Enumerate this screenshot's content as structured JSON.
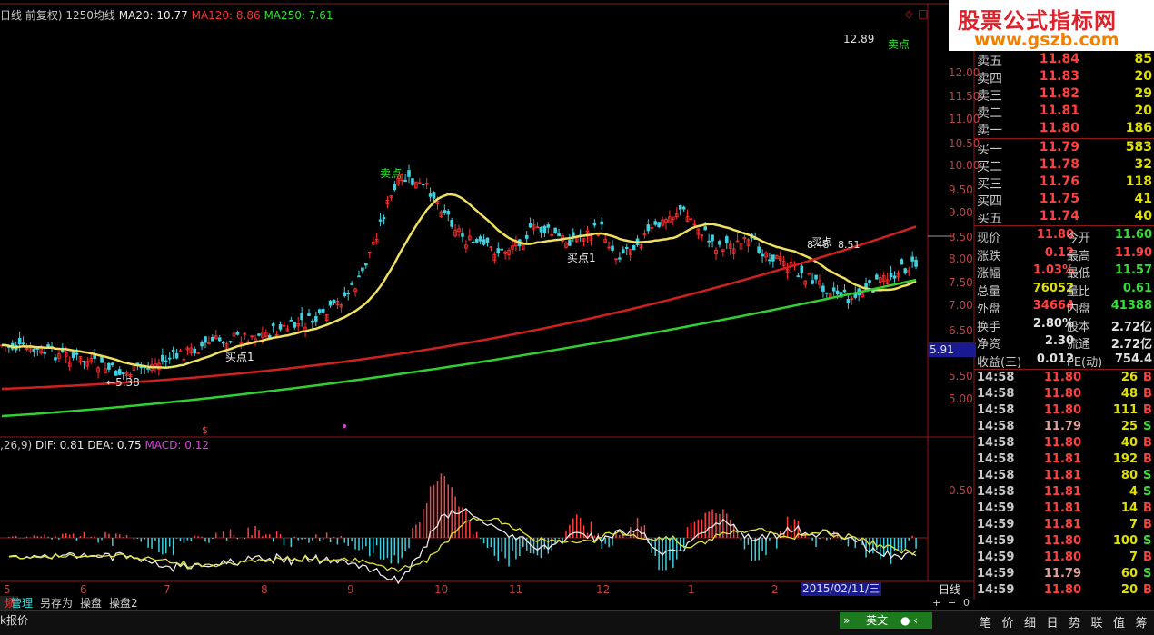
{
  "logo": {
    "line1": "股票公式指标网",
    "line2": "www.gszb.com"
  },
  "header": {
    "period_label": "日线 前复权)",
    "ma1250": "1250均线",
    "ma20": "MA20: 10.77",
    "ma120": "MA120: 8.86",
    "ma250": "MA250: 7.61"
  },
  "price_axis": [
    "12.00",
    "11.50",
    "11.00",
    "10.50",
    "10.00",
    "9.50",
    "9.00",
    "8.50",
    "8.00",
    "7.50",
    "7.00",
    "6.50",
    "5.91",
    "5.50",
    "5.00"
  ],
  "macd_axis": [
    "0.50"
  ],
  "macd_header": {
    "params": ",26,9)",
    "dif": "DIF: 0.81",
    "dea": "DEA: 0.75",
    "macd": "MACD: 0.12"
  },
  "annotations": {
    "high": "12.89",
    "low": "5.38",
    "ref1": "8.48",
    "ref2": "8.51",
    "sell1": "卖点",
    "sell2": "卖点",
    "buy1": "买点1",
    "buy2": "买点1",
    "buy3": "买点",
    "s_mark": "$"
  },
  "x_axis": [
    "5",
    "6",
    "7",
    "8",
    "9",
    "10",
    "11",
    "12",
    "1",
    "2"
  ],
  "date_label": "2015/02/11/三",
  "period_tab": "日线",
  "quotes": {
    "asks": [
      {
        "label": "卖五",
        "price": "11.84",
        "vol": "85"
      },
      {
        "label": "卖四",
        "price": "11.83",
        "vol": "20"
      },
      {
        "label": "卖三",
        "price": "11.82",
        "vol": "29"
      },
      {
        "label": "卖二",
        "price": "11.81",
        "vol": "20"
      },
      {
        "label": "卖一",
        "price": "11.80",
        "vol": "186"
      }
    ],
    "bids": [
      {
        "label": "买一",
        "price": "11.79",
        "vol": "583"
      },
      {
        "label": "买二",
        "price": "11.78",
        "vol": "32"
      },
      {
        "label": "买三",
        "price": "11.76",
        "vol": "118"
      },
      {
        "label": "买四",
        "price": "11.75",
        "vol": "41"
      },
      {
        "label": "买五",
        "price": "11.74",
        "vol": "40"
      }
    ]
  },
  "stats": [
    {
      "l1": "现价",
      "v1": "11.80",
      "c1": "#ff4040",
      "l2": "今开",
      "v2": "11.60",
      "c2": "#30e030"
    },
    {
      "l1": "涨跌",
      "v1": "0.12",
      "c1": "#ff4040",
      "l2": "最高",
      "v2": "11.90",
      "c2": "#ff4040"
    },
    {
      "l1": "涨幅",
      "v1": "1.03%",
      "c1": "#ff4040",
      "l2": "最低",
      "v2": "11.57",
      "c2": "#30e030"
    },
    {
      "l1": "总量",
      "v1": "76052",
      "c1": "#e0e000",
      "l2": "量比",
      "v2": "0.61",
      "c2": "#30e030"
    },
    {
      "l1": "外盘",
      "v1": "34664",
      "c1": "#ff4040",
      "l2": "内盘",
      "v2": "41388",
      "c2": "#30e030"
    },
    {
      "l1": "换手",
      "v1": "2.80%",
      "c1": "#e0e0e0",
      "l2": "股本",
      "v2": "2.72亿",
      "c2": "#e0e0e0"
    },
    {
      "l1": "净资",
      "v1": "2.30",
      "c1": "#e0e0e0",
      "l2": "流通",
      "v2": "2.72亿",
      "c2": "#e0e0e0"
    },
    {
      "l1": "收益(三)",
      "v1": "0.012",
      "c1": "#e0e0e0",
      "l2": "PE(动)",
      "v2": "754.4",
      "c2": "#e0e0e0"
    }
  ],
  "ticks": [
    {
      "time": "14:58",
      "price": "11.80",
      "vol": "26",
      "bs": "B"
    },
    {
      "time": "14:58",
      "price": "11.80",
      "vol": "48",
      "bs": "B"
    },
    {
      "time": "14:58",
      "price": "11.80",
      "vol": "111",
      "bs": "B"
    },
    {
      "time": "14:58",
      "price": "11.79",
      "vol": "25",
      "bs": "S"
    },
    {
      "time": "14:58",
      "price": "11.80",
      "vol": "40",
      "bs": "B"
    },
    {
      "time": "14:58",
      "price": "11.81",
      "vol": "192",
      "bs": "B"
    },
    {
      "time": "14:58",
      "price": "11.81",
      "vol": "80",
      "bs": "S"
    },
    {
      "time": "14:58",
      "price": "11.81",
      "vol": "4",
      "bs": "S"
    },
    {
      "time": "14:59",
      "price": "11.81",
      "vol": "14",
      "bs": "B"
    },
    {
      "time": "14:59",
      "price": "11.81",
      "vol": "7",
      "bs": "B"
    },
    {
      "time": "14:59",
      "price": "11.80",
      "vol": "100",
      "bs": "S"
    },
    {
      "time": "14:59",
      "price": "11.80",
      "vol": "7",
      "bs": "B"
    },
    {
      "time": "14:59",
      "price": "11.79",
      "vol": "60",
      "bs": "S"
    },
    {
      "time": "14:59",
      "price": "11.80",
      "vol": "20",
      "bs": "B"
    }
  ],
  "bottom_tabs": [
    "管理",
    "另存为",
    "操盘",
    "操盘2"
  ],
  "bottom_tab_first": "频",
  "status": {
    "left": "k报价",
    "lang": "英文",
    "side_tabs": [
      "笔",
      "价",
      "细",
      "日",
      "势",
      "联",
      "值",
      "筹"
    ]
  }
}
